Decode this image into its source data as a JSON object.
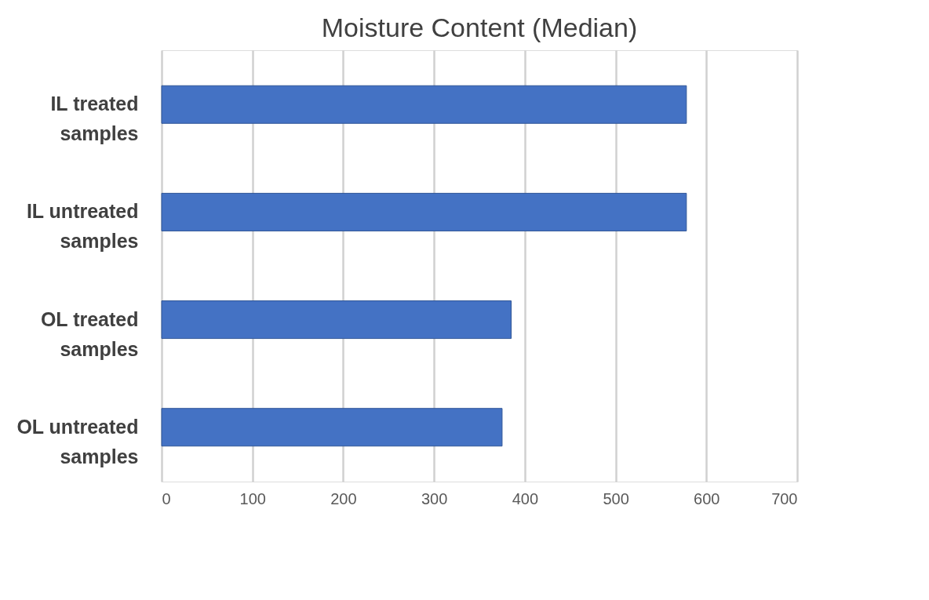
{
  "chart_data": {
    "type": "bar",
    "orientation": "horizontal",
    "title": "Moisture Content (Median)",
    "categories": [
      "IL treated samples",
      "IL untreated samples",
      "OL treated samples",
      "OL untreated samples"
    ],
    "values": [
      578,
      578,
      385,
      375
    ],
    "color": "#4472c4",
    "xlim": [
      0,
      700
    ],
    "xticks": [
      0,
      100,
      200,
      300,
      400,
      500,
      600,
      700
    ],
    "grid": "x"
  }
}
